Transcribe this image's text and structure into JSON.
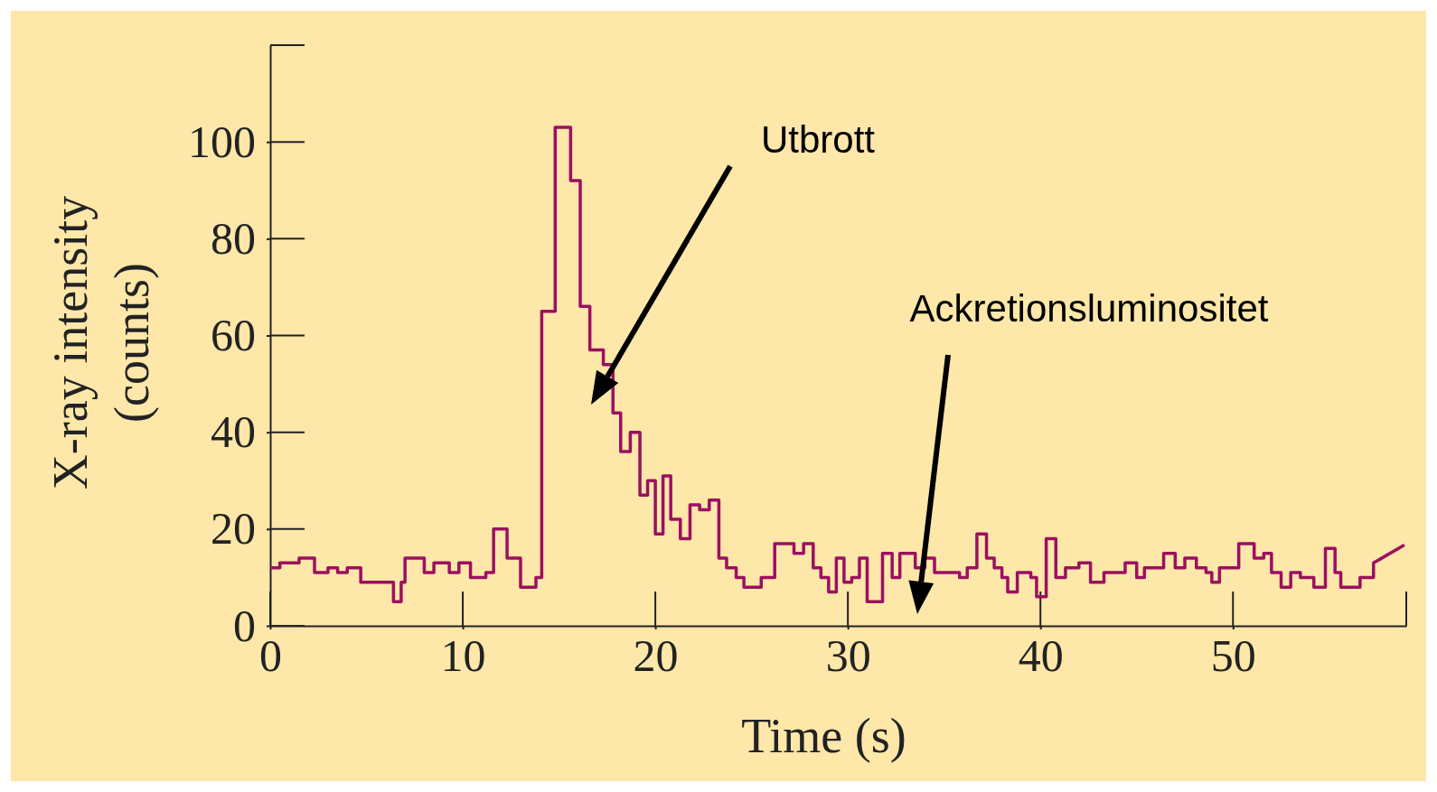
{
  "chart_data": {
    "type": "line",
    "xlabel": "Time (s)",
    "ylabel": "X-ray intensity\n(counts)",
    "xlim": [
      0,
      59
    ],
    "ylim": [
      0,
      120
    ],
    "xticks": [
      0,
      10,
      20,
      30,
      40,
      50
    ],
    "yticks": [
      0,
      20,
      40,
      60,
      80,
      100
    ],
    "series": [
      {
        "color": "#9b1060",
        "x": [
          0,
          0.5,
          0.5,
          1.5,
          1.5,
          2.3,
          2.3,
          3,
          3,
          3.5,
          3.5,
          4,
          4,
          4.7,
          4.7,
          6.4,
          6.4,
          6.8,
          6.8,
          7,
          7,
          8,
          8,
          8.5,
          8.5,
          9.3,
          9.3,
          9.8,
          9.8,
          10.4,
          10.4,
          11.2,
          11.2,
          11.6,
          11.6,
          12.3,
          12.3,
          13,
          13,
          13.8,
          13.8,
          14.1,
          14.1,
          14.8,
          14.8,
          15.6,
          15.6,
          16.1,
          16.1,
          16.6,
          16.6,
          17.3,
          17.3,
          17.8,
          17.8,
          18.2,
          18.2,
          18.7,
          18.7,
          19.2,
          19.2,
          19.6,
          19.6,
          20,
          20,
          20.4,
          20.4,
          20.8,
          20.8,
          21.3,
          21.3,
          21.8,
          21.8,
          22.3,
          22.3,
          22.8,
          22.8,
          23.3,
          23.3,
          23.7,
          23.7,
          24.2,
          24.2,
          24.6,
          24.6,
          25.5,
          25.5,
          26.2,
          26.2,
          27.2,
          27.2,
          27.7,
          27.7,
          28.2,
          28.2,
          28.6,
          28.6,
          29,
          29,
          29.4,
          29.4,
          29.8,
          29.8,
          30.2,
          30.2,
          30.6,
          30.6,
          31,
          31,
          31.8,
          31.8,
          32.3,
          32.3,
          32.7,
          32.7,
          33.5,
          33.5,
          34,
          34,
          34.5,
          34.5,
          35.3,
          35.3,
          35.8,
          35.8,
          36.2,
          36.2,
          36.7,
          36.7,
          37.2,
          37.2,
          37.6,
          37.6,
          38,
          38,
          38.3,
          38.3,
          38.8,
          38.8,
          39.5,
          39.5,
          39.8,
          39.8,
          40.3,
          40.3,
          40.8,
          40.8,
          41.3,
          41.3,
          42,
          42,
          42.6,
          42.6,
          43.3,
          43.3,
          44.4,
          44.4,
          45,
          45,
          45.4,
          45.4,
          46.4,
          46.4,
          47,
          47,
          47.5,
          47.5,
          48.1,
          48.1,
          48.6,
          48.6,
          48.9,
          48.9,
          49.3,
          49.3,
          50.3,
          50.3,
          51.1,
          51.1,
          51.6,
          51.6,
          52,
          52,
          52.5,
          52.5,
          53,
          53,
          53.5,
          53.5,
          54.2,
          54.2,
          54.8,
          54.8,
          55.3,
          55.3,
          55.6,
          55.6,
          56.6,
          56.6,
          57.3,
          57.3,
          58.9
        ],
        "values": [
          12,
          12,
          13,
          13,
          14,
          14,
          11,
          11,
          12,
          12,
          11,
          11,
          12,
          12,
          9,
          9,
          5,
          5,
          9,
          9,
          14,
          14,
          11,
          11,
          13,
          13,
          11,
          11,
          13,
          13,
          10,
          10,
          11,
          11,
          20,
          20,
          14,
          14,
          8,
          8,
          10,
          10,
          65,
          65,
          103,
          103,
          92,
          92,
          66,
          66,
          57,
          57,
          54,
          54,
          44,
          44,
          36,
          36,
          40,
          40,
          27,
          27,
          30,
          30,
          19,
          19,
          31,
          31,
          22,
          22,
          18,
          18,
          25,
          25,
          24,
          24,
          26,
          26,
          14,
          14,
          12,
          12,
          10,
          10,
          8,
          8,
          10,
          10,
          17,
          17,
          15,
          15,
          17,
          17,
          12,
          12,
          10,
          10,
          7,
          7,
          14,
          14,
          9,
          9,
          10,
          10,
          14,
          14,
          5,
          5,
          15,
          15,
          10,
          10,
          15,
          15,
          12,
          12,
          14,
          14,
          11,
          11,
          11,
          11,
          10,
          10,
          12,
          12,
          19,
          19,
          14,
          14,
          12,
          12,
          10,
          10,
          7,
          7,
          11,
          11,
          10,
          10,
          6,
          6,
          18,
          18,
          10,
          10,
          12,
          12,
          13,
          13,
          9,
          9,
          11,
          11,
          13,
          13,
          10,
          10,
          12,
          12,
          15,
          15,
          12,
          12,
          14,
          14,
          12,
          12,
          11,
          11,
          9,
          9,
          12,
          12,
          17,
          17,
          14,
          14,
          15,
          15,
          11,
          11,
          8,
          8,
          11,
          11,
          10,
          10,
          8,
          8,
          16,
          16,
          11,
          11,
          8,
          8,
          10,
          10,
          13,
          16.7
        ]
      }
    ],
    "annotations": [
      "Utbrott",
      "Ackretionsluminositet"
    ]
  }
}
